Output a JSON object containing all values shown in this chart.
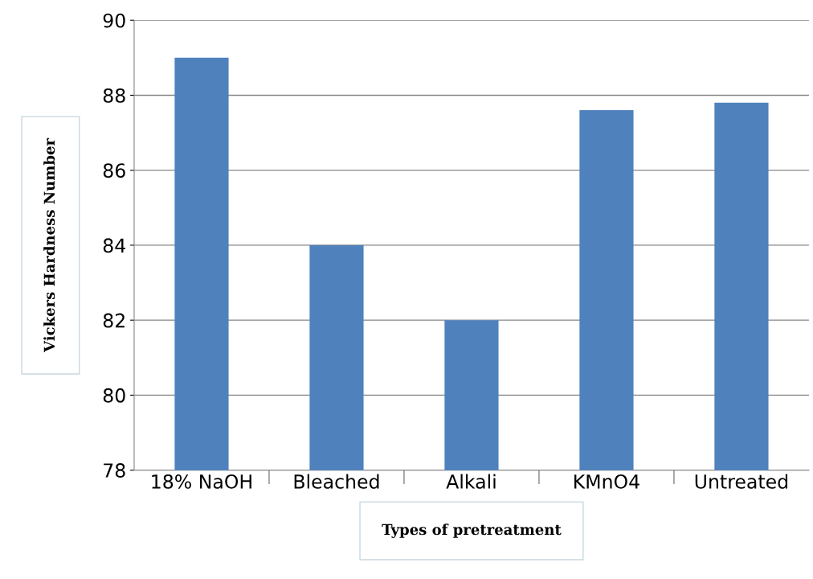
{
  "chart_data": {
    "type": "bar",
    "xlabel": "Types of pretreatment",
    "ylabel": "Vickers Hardness Number",
    "categories": [
      "18% NaOH",
      "Bleached",
      "Alkali",
      "KMnO4",
      "Untreated"
    ],
    "values": [
      89,
      84,
      82,
      87.6,
      87.8
    ],
    "color": "#4f81bd",
    "ylim": [
      78,
      90
    ],
    "yticks": [
      78,
      80,
      82,
      84,
      86,
      88,
      90
    ],
    "grid": "y",
    "legend": false
  }
}
